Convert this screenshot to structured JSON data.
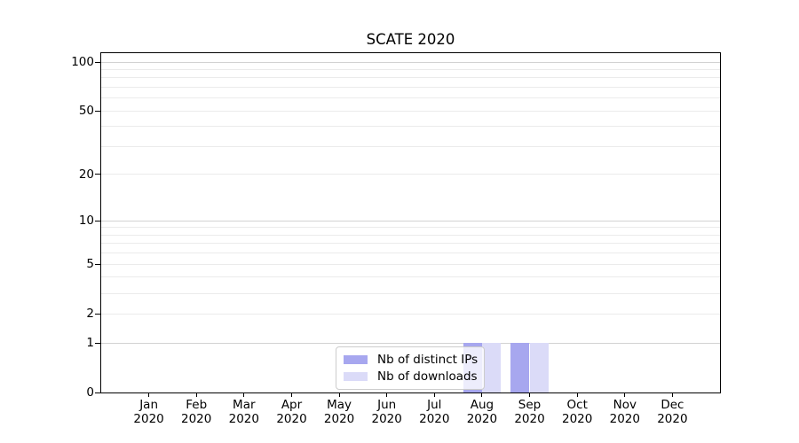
{
  "chart_data": {
    "type": "bar",
    "title": "SCATE 2020",
    "x_categories": [
      {
        "month": "Jan",
        "year": "2020"
      },
      {
        "month": "Feb",
        "year": "2020"
      },
      {
        "month": "Mar",
        "year": "2020"
      },
      {
        "month": "Apr",
        "year": "2020"
      },
      {
        "month": "May",
        "year": "2020"
      },
      {
        "month": "Jun",
        "year": "2020"
      },
      {
        "month": "Jul",
        "year": "2020"
      },
      {
        "month": "Aug",
        "year": "2020"
      },
      {
        "month": "Sep",
        "year": "2020"
      },
      {
        "month": "Oct",
        "year": "2020"
      },
      {
        "month": "Nov",
        "year": "2020"
      },
      {
        "month": "Dec",
        "year": "2020"
      }
    ],
    "series": [
      {
        "name": "Nb of distinct IPs",
        "color": "#a7a7ef",
        "values": [
          0,
          0,
          0,
          0,
          0,
          0,
          0,
          1,
          1,
          0,
          0,
          0
        ]
      },
      {
        "name": "Nb of downloads",
        "color": "#dbdbf8",
        "values": [
          0,
          0,
          0,
          0,
          0,
          0,
          0,
          1,
          1,
          0,
          0,
          0
        ]
      }
    ],
    "y_axis": {
      "scale": "log1p",
      "lim": [
        0,
        100
      ],
      "labeled_ticks": [
        0,
        1,
        2,
        5,
        10,
        20,
        50,
        100
      ],
      "major_grid": [
        1,
        10,
        100
      ],
      "minor_grid": [
        2,
        3,
        4,
        5,
        6,
        7,
        8,
        9,
        20,
        30,
        40,
        50,
        60,
        70,
        80,
        90
      ]
    },
    "legend": {
      "position": "lower center"
    },
    "colors": {
      "grid_major": "#d2d2d2",
      "grid_minor": "#ebebeb",
      "spine": "#000000",
      "text": "#000000"
    }
  }
}
